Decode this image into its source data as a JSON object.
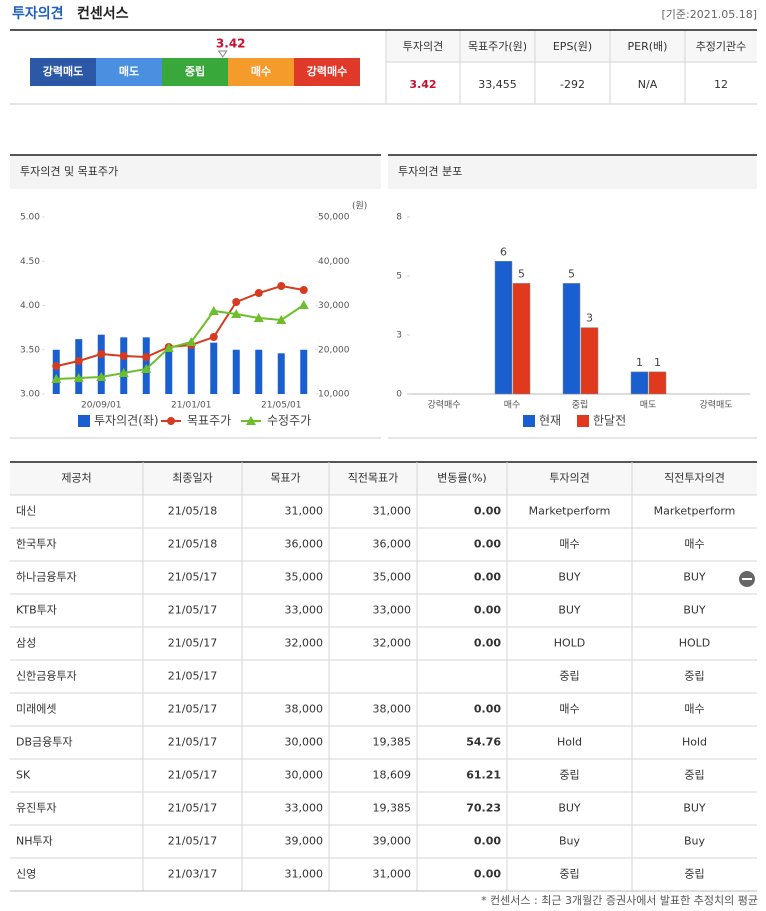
{
  "header": {
    "title": "투자의견",
    "subtitle": "컨센서스",
    "date": "[기준:2021.05.18]"
  },
  "opinion_scale": {
    "levels": [
      "강력매도",
      "매도",
      "중립",
      "매수",
      "강력매수"
    ],
    "colors": [
      "#2b59a8",
      "#4a8fe0",
      "#38a83a",
      "#f59b2b",
      "#e0392a"
    ],
    "value": 3.42
  },
  "summary": {
    "columns": [
      "투자의견",
      "목표주가(원)",
      "EPS(원)",
      "PER(배)",
      "추정기관수"
    ],
    "values": [
      "3.42",
      "33,455",
      "-292",
      "N/A",
      "12"
    ]
  },
  "chart_data": [
    {
      "type": "combo",
      "title": "투자의견 및 목표주가",
      "y2label": "(원)",
      "categories": [
        null,
        null,
        "20/09/01",
        null,
        null,
        null,
        "21/01/01",
        null,
        null,
        null,
        "21/05/01",
        null
      ],
      "series": [
        {
          "name": "투자의견(좌)",
          "color": "#1a5fd0",
          "kind": "bar",
          "values": [
            3.5,
            3.62,
            3.67,
            3.64,
            3.64,
            3.55,
            3.55,
            3.58,
            3.5,
            3.5,
            3.46,
            3.5
          ]
        },
        {
          "name": "목표주가",
          "color": "#d63a1f",
          "kind": "line",
          "marker": "circle",
          "axis": "y2",
          "values": [
            16300,
            17460,
            19040,
            18590,
            18360,
            20620,
            21070,
            22880,
            30790,
            32820,
            34400,
            33500
          ]
        },
        {
          "name": "수정주가",
          "color": "#6cbf2a",
          "kind": "line",
          "marker": "triangle",
          "axis": "y2",
          "values": [
            13390,
            13620,
            13840,
            14750,
            15650,
            20400,
            21750,
            28760,
            28080,
            27170,
            26720,
            30110
          ]
        }
      ],
      "ylim": [
        3,
        5
      ],
      "yticks": [
        {
          "value": 3,
          "label": "3.00"
        },
        {
          "value": 3.5,
          "label": "3.50"
        },
        {
          "value": 4,
          "label": "4.00"
        },
        {
          "value": 4.5,
          "label": "4.50"
        },
        {
          "value": 5,
          "label": "5.00"
        }
      ],
      "y2lim": [
        10000,
        50000
      ],
      "y2ticks": [
        {
          "value": 10000,
          "label": "10,000"
        },
        {
          "value": 20000,
          "label": "20,000"
        },
        {
          "value": 30000,
          "label": "30,000"
        },
        {
          "value": 40000,
          "label": "40,000"
        },
        {
          "value": 50000,
          "label": "50,000"
        }
      ]
    },
    {
      "type": "bar",
      "title": "투자의견 분포",
      "categories": [
        "강력매수",
        "매수",
        "중립",
        "매도",
        "강력매도"
      ],
      "series": [
        {
          "name": "현재",
          "color": "#1a5fd0",
          "values": [
            null,
            6,
            5,
            1,
            null
          ]
        },
        {
          "name": "한달전",
          "color": "#e0391e",
          "values": [
            null,
            5,
            3,
            1,
            null
          ]
        }
      ],
      "ylim": [
        0,
        8
      ],
      "yticks": [
        0,
        {
          "value": 2.67,
          "label": "3"
        },
        {
          "value": 5.33,
          "label": "5"
        },
        8
      ]
    }
  ],
  "table": {
    "columns": [
      "제공처",
      "최종일자",
      "목표가",
      "직전목표가",
      "변동률(%)",
      "투자의견",
      "직전투자의견"
    ],
    "rows": [
      [
        "대신",
        "21/05/18",
        "31,000",
        "31,000",
        "0.00",
        "Marketperform",
        "Marketperform"
      ],
      [
        "한국투자",
        "21/05/18",
        "36,000",
        "36,000",
        "0.00",
        "매수",
        "매수"
      ],
      [
        "하나금융투자",
        "21/05/17",
        "35,000",
        "35,000",
        "0.00",
        "BUY",
        "BUY"
      ],
      [
        "KTB투자",
        "21/05/17",
        "33,000",
        "33,000",
        "0.00",
        "BUY",
        "BUY"
      ],
      [
        "삼성",
        "21/05/17",
        "32,000",
        "32,000",
        "0.00",
        "HOLD",
        "HOLD"
      ],
      [
        "신한금융투자",
        "21/05/17",
        null,
        null,
        null,
        "중립",
        "중립"
      ],
      [
        "미래에셋",
        "21/05/17",
        "38,000",
        "38,000",
        "0.00",
        "매수",
        "매수"
      ],
      [
        "DB금융투자",
        "21/05/17",
        "30,000",
        "19,385",
        "54.76",
        "Hold",
        "Hold"
      ],
      [
        "SK",
        "21/05/17",
        "30,000",
        "18,609",
        "61.21",
        "중립",
        "중립"
      ],
      [
        "유진투자",
        "21/05/17",
        "33,000",
        "19,385",
        "70.23",
        "BUY",
        "BUY"
      ],
      [
        "NH투자",
        "21/05/17",
        "39,000",
        "39,000",
        "0.00",
        "Buy",
        "Buy"
      ],
      [
        "신영",
        "21/03/17",
        "31,000",
        "31,000",
        "0.00",
        "중립",
        "중립"
      ]
    ]
  },
  "footnote": "* 컨센서스 : 최근 3개월간 증권사에서 발표한 추정치의 평균"
}
